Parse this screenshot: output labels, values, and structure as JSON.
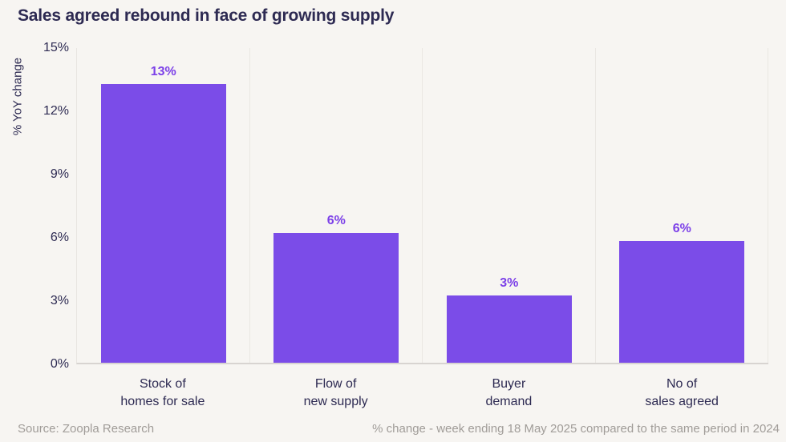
{
  "title": "Sales agreed rebound in face of growing supply",
  "footer": {
    "source": "Source: Zoopla Research",
    "note": "% change - week ending 18 May 2025 compared to the same period in 2024"
  },
  "colors": {
    "background": "#f7f5f2",
    "bar": "#7b4ce8",
    "value_label": "#7c40e8",
    "text_dark": "#2d2a52",
    "muted_text": "#a09c98",
    "axis_line": "#d8d4d1",
    "gridline": "#eae7e3"
  },
  "chart_data": {
    "type": "bar",
    "title": "Sales agreed rebound in face of growing supply",
    "xlabel": "",
    "ylabel": "% YoY change",
    "ylim": [
      0,
      15
    ],
    "grid": "vertical category separators only",
    "legend": "none",
    "yticks": [
      {
        "value": 0,
        "label": "0%"
      },
      {
        "value": 3,
        "label": "3%"
      },
      {
        "value": 6,
        "label": "6%"
      },
      {
        "value": 9,
        "label": "9%"
      },
      {
        "value": 12,
        "label": "12%"
      },
      {
        "value": 15,
        "label": "15%"
      }
    ],
    "categories": [
      "Stock of\nhomes for sale",
      "Flow of\nnew supply",
      "Buyer\ndemand",
      "No of\nsales agreed"
    ],
    "values": [
      13.3,
      6.2,
      3.2,
      5.8
    ],
    "bar_labels": [
      "13%",
      "6%",
      "3%",
      "6%"
    ]
  }
}
